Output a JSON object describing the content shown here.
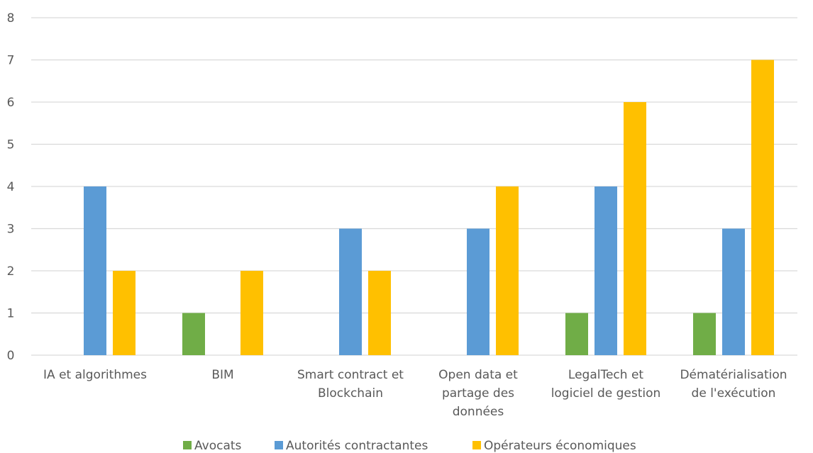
{
  "chart_data": {
    "type": "bar",
    "categories": [
      [
        "IA et algorithmes"
      ],
      [
        "BIM"
      ],
      [
        "Smart contract et",
        "Blockchain"
      ],
      [
        "Open data et",
        "partage des",
        "données"
      ],
      [
        "LegalTech et",
        "logiciel de gestion"
      ],
      [
        "Dématérialisation",
        "de l'exécution"
      ]
    ],
    "series": [
      {
        "name": "Avocats",
        "color": "#70ad47",
        "values": [
          0,
          1,
          0,
          0,
          1,
          1
        ]
      },
      {
        "name": "Autorités contractantes",
        "color": "#5b9bd5",
        "values": [
          4,
          0,
          3,
          3,
          4,
          3
        ]
      },
      {
        "name": "Opérateurs économiques",
        "color": "#ffc000",
        "values": [
          2,
          2,
          2,
          4,
          6,
          7
        ]
      }
    ],
    "ylim": [
      0,
      8
    ],
    "yticks": [
      0,
      1,
      2,
      3,
      4,
      5,
      6,
      7,
      8
    ],
    "grid": true,
    "legend_position": "bottom"
  }
}
